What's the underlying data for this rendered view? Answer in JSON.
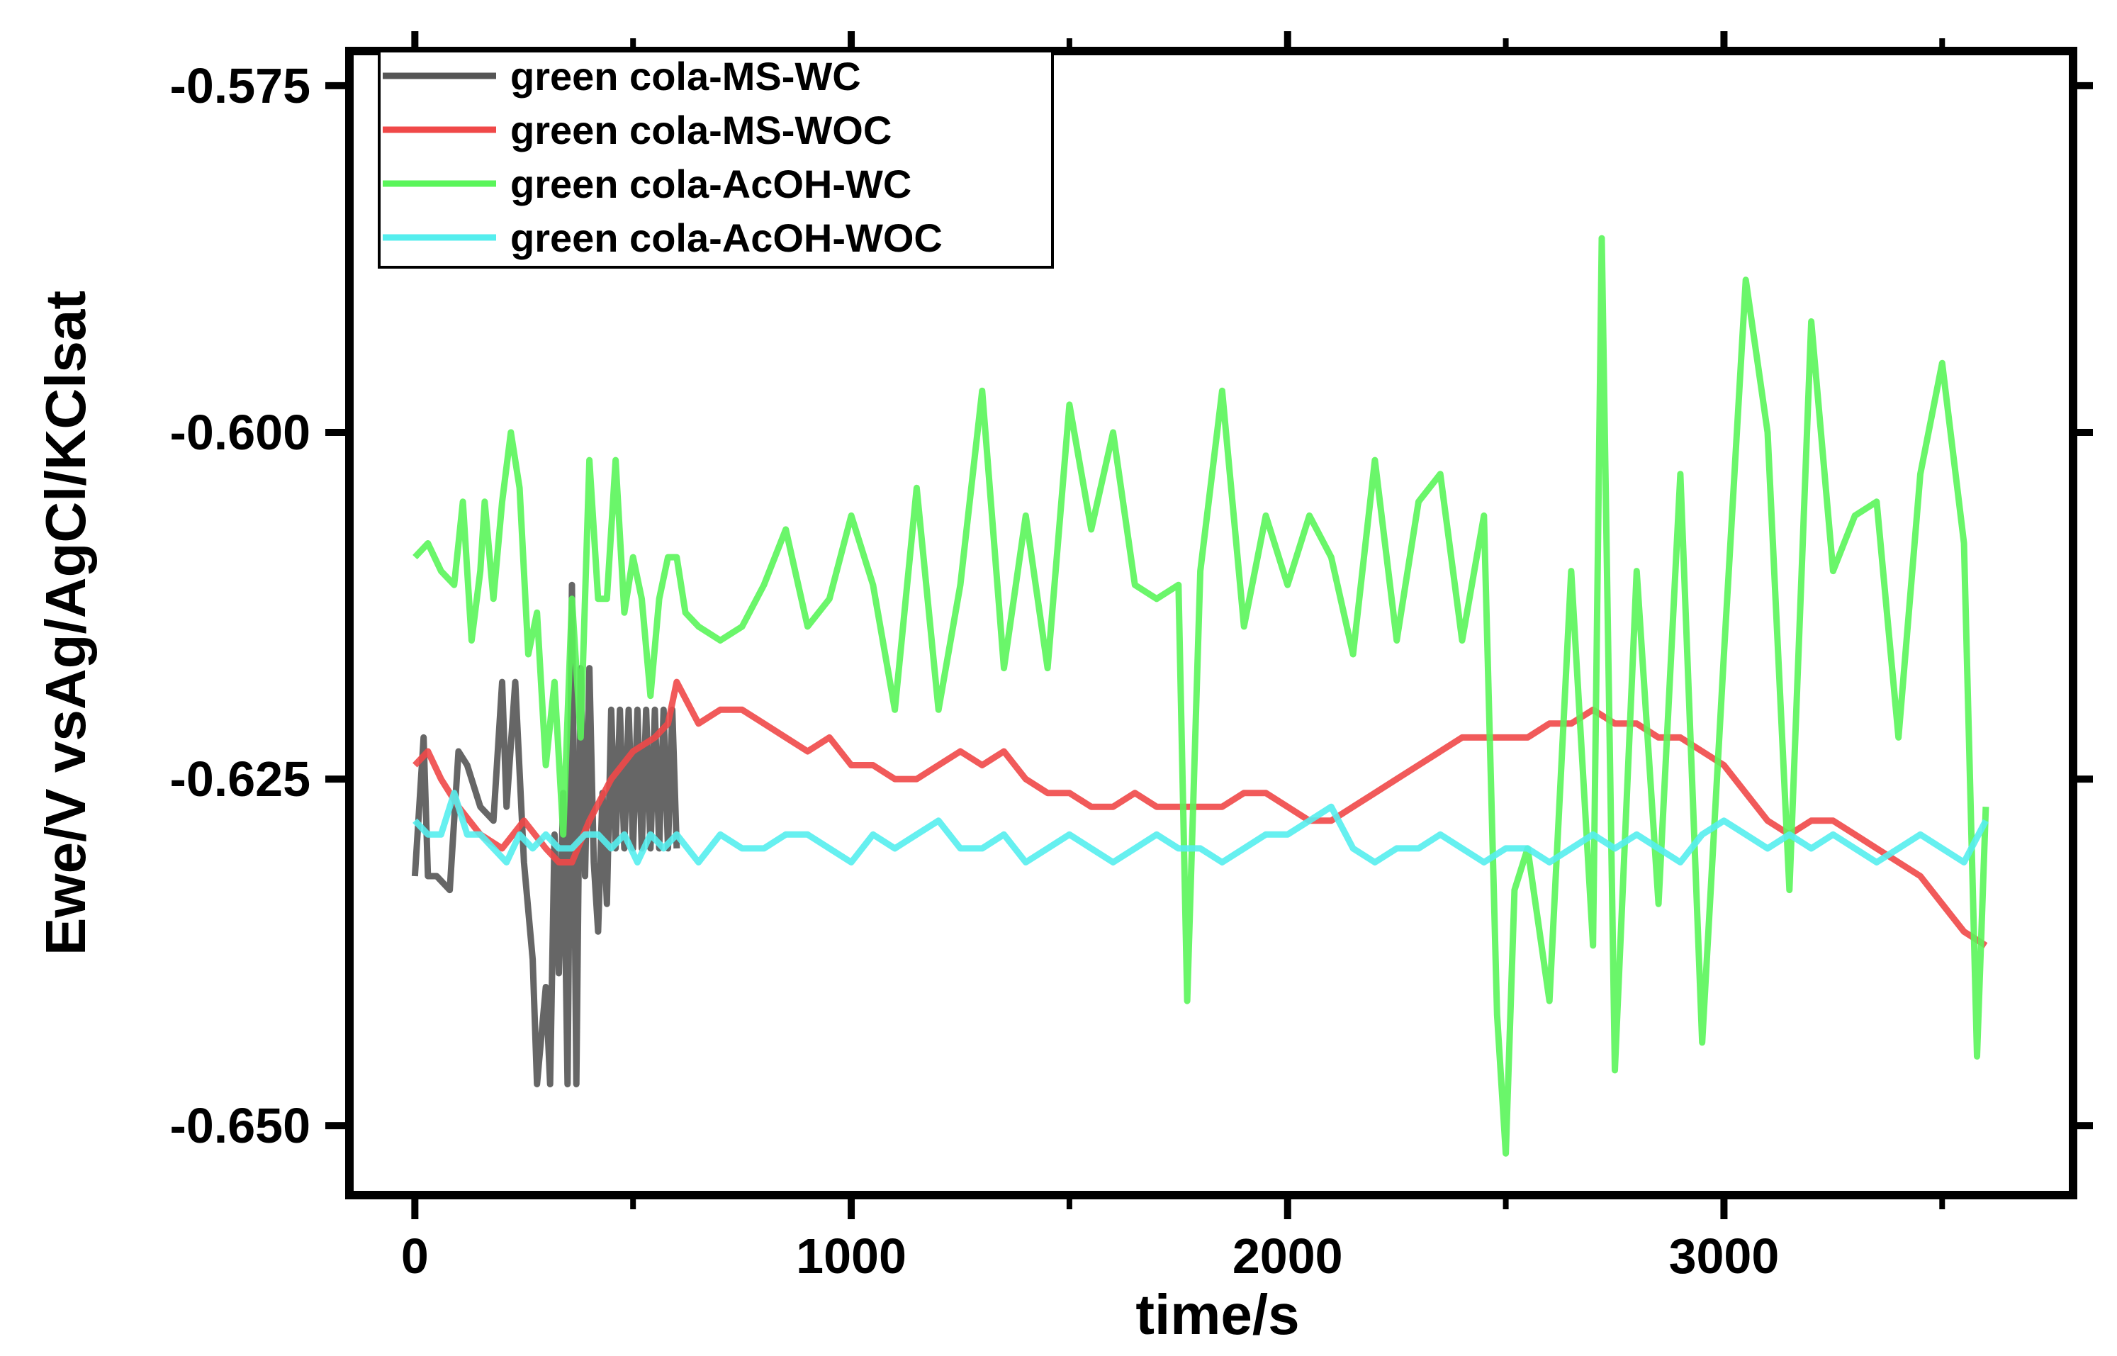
{
  "chart_data": {
    "type": "line",
    "xlabel": "time/s",
    "ylabel": "Ewe/V vsAg/AgCl/KClsat",
    "xlim": [
      -150,
      3800
    ],
    "ylim": [
      -0.655,
      -0.5725
    ],
    "x_ticks": [
      0,
      1000,
      2000,
      3000
    ],
    "x_minor_ticks": [
      500,
      1500,
      2500,
      3500
    ],
    "y_ticks": [
      -0.575,
      -0.6,
      -0.625,
      -0.65
    ],
    "y_tick_labels": [
      "-0.575",
      "-0.600",
      "-0.625",
      "-0.650"
    ],
    "legend_position": "top-left",
    "series": [
      {
        "name": "green cola-MS-WC",
        "color": "#555555",
        "x": [
          0,
          20,
          30,
          50,
          80,
          100,
          120,
          150,
          180,
          200,
          210,
          230,
          250,
          270,
          280,
          300,
          310,
          320,
          330,
          340,
          350,
          360,
          370,
          380,
          390,
          400,
          410,
          420,
          430,
          440,
          450,
          460,
          470,
          480,
          490,
          500,
          510,
          520,
          530,
          540,
          550,
          560,
          570,
          580,
          590,
          600
        ],
        "y": [
          -0.632,
          -0.622,
          -0.632,
          -0.632,
          -0.633,
          -0.623,
          -0.624,
          -0.627,
          -0.628,
          -0.618,
          -0.627,
          -0.618,
          -0.631,
          -0.638,
          -0.647,
          -0.64,
          -0.647,
          -0.629,
          -0.639,
          -0.626,
          -0.647,
          -0.611,
          -0.647,
          -0.617,
          -0.632,
          -0.617,
          -0.631,
          -0.636,
          -0.626,
          -0.634,
          -0.62,
          -0.63,
          -0.62,
          -0.63,
          -0.62,
          -0.63,
          -0.62,
          -0.63,
          -0.62,
          -0.63,
          -0.62,
          -0.63,
          -0.62,
          -0.63,
          -0.62,
          -0.63
        ]
      },
      {
        "name": "green cola-MS-WOC",
        "color": "#f04848",
        "x": [
          0,
          30,
          60,
          100,
          150,
          200,
          250,
          300,
          330,
          360,
          400,
          450,
          500,
          550,
          580,
          600,
          650,
          700,
          750,
          800,
          850,
          900,
          950,
          1000,
          1050,
          1100,
          1150,
          1200,
          1250,
          1300,
          1350,
          1400,
          1450,
          1500,
          1550,
          1600,
          1650,
          1700,
          1750,
          1800,
          1850,
          1900,
          1950,
          2000,
          2050,
          2100,
          2150,
          2200,
          2250,
          2300,
          2350,
          2400,
          2450,
          2500,
          2550,
          2600,
          2650,
          2700,
          2750,
          2800,
          2850,
          2900,
          2950,
          3000,
          3050,
          3100,
          3150,
          3200,
          3250,
          3300,
          3350,
          3400,
          3450,
          3500,
          3550,
          3600
        ],
        "y": [
          -0.624,
          -0.623,
          -0.625,
          -0.627,
          -0.629,
          -0.63,
          -0.628,
          -0.63,
          -0.631,
          -0.631,
          -0.628,
          -0.625,
          -0.623,
          -0.622,
          -0.621,
          -0.618,
          -0.621,
          -0.62,
          -0.62,
          -0.621,
          -0.622,
          -0.623,
          -0.622,
          -0.624,
          -0.624,
          -0.625,
          -0.625,
          -0.624,
          -0.623,
          -0.624,
          -0.623,
          -0.625,
          -0.626,
          -0.626,
          -0.627,
          -0.627,
          -0.626,
          -0.627,
          -0.627,
          -0.627,
          -0.627,
          -0.626,
          -0.626,
          -0.627,
          -0.628,
          -0.628,
          -0.627,
          -0.626,
          -0.625,
          -0.624,
          -0.623,
          -0.622,
          -0.622,
          -0.622,
          -0.622,
          -0.621,
          -0.621,
          -0.62,
          -0.621,
          -0.621,
          -0.622,
          -0.622,
          -0.623,
          -0.624,
          -0.626,
          -0.628,
          -0.629,
          -0.628,
          -0.628,
          -0.629,
          -0.63,
          -0.631,
          -0.632,
          -0.634,
          -0.636,
          -0.637
        ]
      },
      {
        "name": "green cola-AcOH-WC",
        "color": "#5af55a",
        "x": [
          0,
          30,
          60,
          90,
          110,
          130,
          150,
          160,
          180,
          200,
          220,
          240,
          260,
          280,
          300,
          320,
          340,
          360,
          380,
          400,
          420,
          440,
          460,
          480,
          500,
          520,
          540,
          560,
          580,
          600,
          620,
          650,
          700,
          750,
          800,
          850,
          900,
          950,
          1000,
          1050,
          1100,
          1150,
          1200,
          1250,
          1300,
          1350,
          1400,
          1450,
          1500,
          1550,
          1600,
          1650,
          1700,
          1750,
          1770,
          1800,
          1850,
          1900,
          1950,
          2000,
          2050,
          2100,
          2150,
          2200,
          2250,
          2300,
          2350,
          2400,
          2450,
          2480,
          2500,
          2520,
          2550,
          2600,
          2650,
          2700,
          2720,
          2750,
          2800,
          2850,
          2900,
          2950,
          3000,
          3050,
          3100,
          3150,
          3200,
          3250,
          3300,
          3350,
          3400,
          3450,
          3500,
          3550,
          3580,
          3600
        ],
        "y": [
          -0.609,
          -0.608,
          -0.61,
          -0.611,
          -0.605,
          -0.615,
          -0.61,
          -0.605,
          -0.612,
          -0.605,
          -0.6,
          -0.604,
          -0.616,
          -0.613,
          -0.624,
          -0.618,
          -0.629,
          -0.612,
          -0.622,
          -0.602,
          -0.612,
          -0.612,
          -0.602,
          -0.613,
          -0.609,
          -0.612,
          -0.619,
          -0.612,
          -0.609,
          -0.609,
          -0.613,
          -0.614,
          -0.615,
          -0.614,
          -0.611,
          -0.607,
          -0.614,
          -0.612,
          -0.606,
          -0.611,
          -0.62,
          -0.604,
          -0.62,
          -0.611,
          -0.597,
          -0.617,
          -0.606,
          -0.617,
          -0.598,
          -0.607,
          -0.6,
          -0.611,
          -0.612,
          -0.611,
          -0.641,
          -0.61,
          -0.597,
          -0.614,
          -0.606,
          -0.611,
          -0.606,
          -0.609,
          -0.616,
          -0.602,
          -0.615,
          -0.605,
          -0.603,
          -0.615,
          -0.606,
          -0.642,
          -0.652,
          -0.633,
          -0.63,
          -0.641,
          -0.61,
          -0.637,
          -0.586,
          -0.646,
          -0.61,
          -0.634,
          -0.603,
          -0.644,
          -0.616,
          -0.589,
          -0.6,
          -0.633,
          -0.592,
          -0.61,
          -0.606,
          -0.605,
          -0.622,
          -0.603,
          -0.595,
          -0.608,
          -0.645,
          -0.627
        ]
      },
      {
        "name": "green cola-AcOH-WOC",
        "color": "#55eeee",
        "x": [
          0,
          30,
          60,
          90,
          120,
          150,
          180,
          210,
          240,
          270,
          300,
          330,
          360,
          390,
          420,
          450,
          480,
          510,
          540,
          570,
          600,
          650,
          700,
          750,
          800,
          850,
          900,
          950,
          1000,
          1050,
          1100,
          1150,
          1200,
          1250,
          1300,
          1350,
          1400,
          1450,
          1500,
          1550,
          1600,
          1650,
          1700,
          1750,
          1800,
          1850,
          1900,
          1950,
          2000,
          2050,
          2100,
          2150,
          2200,
          2250,
          2300,
          2350,
          2400,
          2450,
          2500,
          2550,
          2600,
          2650,
          2700,
          2750,
          2800,
          2850,
          2900,
          2950,
          3000,
          3050,
          3100,
          3150,
          3200,
          3250,
          3300,
          3350,
          3400,
          3450,
          3500,
          3550,
          3600
        ],
        "y": [
          -0.628,
          -0.629,
          -0.629,
          -0.626,
          -0.629,
          -0.629,
          -0.63,
          -0.631,
          -0.629,
          -0.63,
          -0.629,
          -0.63,
          -0.63,
          -0.629,
          -0.629,
          -0.63,
          -0.629,
          -0.631,
          -0.629,
          -0.63,
          -0.629,
          -0.631,
          -0.629,
          -0.63,
          -0.63,
          -0.629,
          -0.629,
          -0.63,
          -0.631,
          -0.629,
          -0.63,
          -0.629,
          -0.628,
          -0.63,
          -0.63,
          -0.629,
          -0.631,
          -0.63,
          -0.629,
          -0.63,
          -0.631,
          -0.63,
          -0.629,
          -0.63,
          -0.63,
          -0.631,
          -0.63,
          -0.629,
          -0.629,
          -0.628,
          -0.627,
          -0.63,
          -0.631,
          -0.63,
          -0.63,
          -0.629,
          -0.63,
          -0.631,
          -0.63,
          -0.63,
          -0.631,
          -0.63,
          -0.629,
          -0.63,
          -0.629,
          -0.63,
          -0.631,
          -0.629,
          -0.628,
          -0.629,
          -0.63,
          -0.629,
          -0.63,
          -0.629,
          -0.63,
          -0.631,
          -0.63,
          -0.629,
          -0.63,
          -0.631,
          -0.628
        ]
      }
    ]
  }
}
